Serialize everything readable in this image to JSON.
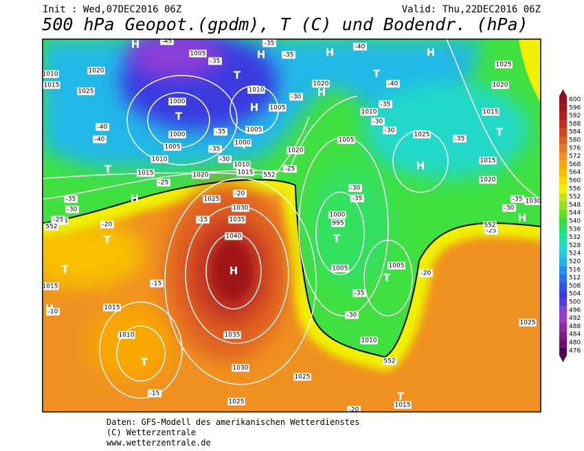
{
  "header": {
    "init": "Init : Wed,07DEC2016 06Z",
    "valid": "Valid: Thu,22DEC2016 06Z",
    "title": "500 hPa Geopot.(gpdm), T (C) und Bodendr. (hPa)"
  },
  "map": {
    "labels": [
      "H",
      "H",
      "H",
      "H",
      "T",
      "T",
      "H",
      "T",
      "H",
      "T",
      "T",
      "H",
      "T",
      "H",
      "T",
      "T",
      "H",
      "T",
      "T",
      "H",
      "T",
      "H",
      "T",
      "1005",
      "1010",
      "1015",
      "1020",
      "1025",
      "1000",
      "1000",
      "1005",
      "1010",
      "1015",
      "1020",
      "1010",
      "1005",
      "1005",
      "1000",
      "1010",
      "1015",
      "1020",
      "1020",
      "1010",
      "1005",
      "1025",
      "1025",
      "1020",
      "1015",
      "1015",
      "1020",
      "1030",
      "1025",
      "1030",
      "1035",
      "1040",
      "1035",
      "1030",
      "1025",
      "1015",
      "1015",
      "1015",
      "1010",
      "1000",
      "995",
      "1005",
      "1005",
      "1010",
      "1015",
      "1025",
      "1025",
      "-45",
      "-35",
      "-35",
      "-35",
      "-40",
      "-35",
      "-30",
      "-40",
      "-40",
      "-35",
      "-35",
      "-30",
      "-25",
      "-25",
      "-30",
      "-30",
      "-40",
      "-35",
      "-35",
      "-30",
      "-25",
      "-20",
      "-20",
      "-15",
      "-15",
      "-10",
      "-30",
      "-35",
      "-35",
      "-30",
      "-20",
      "-25",
      "-30",
      "-35",
      "-15",
      "-20",
      "552",
      "552",
      "552",
      "552"
    ]
  },
  "colorbar": {
    "levels": [
      476,
      480,
      484,
      488,
      492,
      496,
      500,
      504,
      508,
      512,
      516,
      520,
      524,
      528,
      532,
      536,
      540,
      544,
      548,
      552,
      556,
      560,
      564,
      568,
      572,
      576,
      580,
      584,
      588,
      592,
      596,
      600
    ],
    "colors": [
      "#4b0a4a",
      "#6a1070",
      "#7d1d8a",
      "#8e2aa0",
      "#9a3cc0",
      "#8a3ed8",
      "#5a3ed8",
      "#3a3ae0",
      "#2a55e8",
      "#2a70f0",
      "#2a90f0",
      "#20b0f0",
      "#20c8e8",
      "#20d8c8",
      "#20e0a0",
      "#20e070",
      "#30e040",
      "#60e020",
      "#90e020",
      "#c0e020",
      "#f0f000",
      "#f8d800",
      "#f8c000",
      "#f8a800",
      "#f09020",
      "#e87820",
      "#e06020",
      "#d04820",
      "#c03020",
      "#b02020",
      "#a01818",
      "#900f20"
    ]
  },
  "footer": {
    "line1": "Daten: GFS-Modell des amerikanischen Wetterdienstes",
    "line2": "(C) Wetterzentrale",
    "line3": "www.wetterzentrale.de"
  }
}
